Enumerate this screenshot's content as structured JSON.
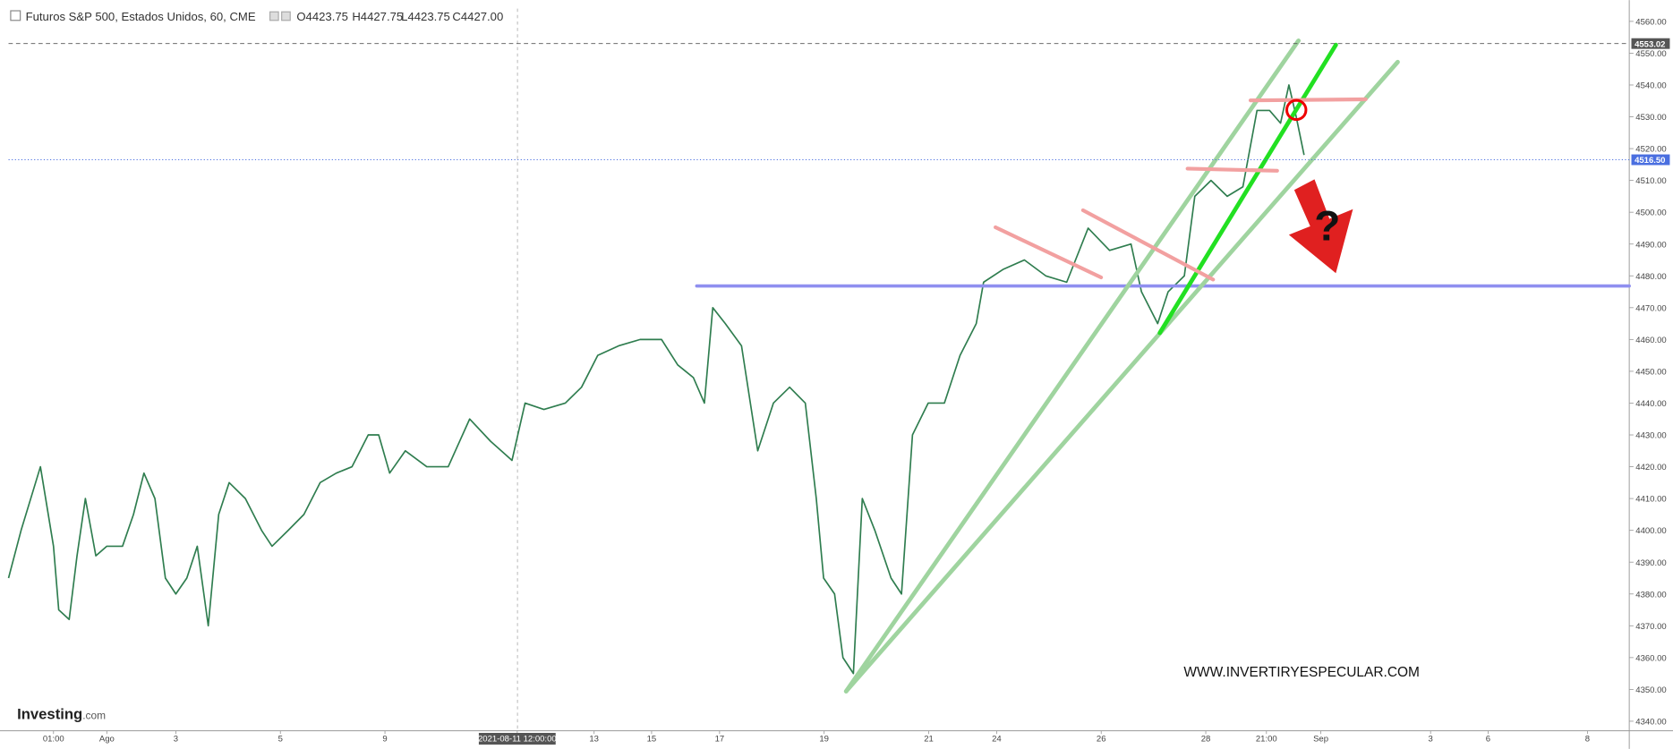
{
  "header": {
    "title": "Futuros S&P 500, Estados Unidos, 60, CME",
    "open": "O4423.75",
    "high": "H4427.75",
    "low": "L4423.75",
    "close": "C4427.00"
  },
  "chart_data": {
    "type": "line",
    "x": [
      0,
      0.24,
      0.61,
      0.86,
      0.96,
      1.16,
      1.31,
      1.47,
      1.67,
      1.88,
      2.18,
      2.39,
      2.59,
      2.8,
      3.0,
      3.2,
      3.41,
      3.61,
      3.82,
      4.02,
      4.22,
      4.53,
      4.84,
      5.04,
      5.35,
      5.65,
      5.96,
      6.27,
      6.57,
      6.88,
      7.08,
      7.29,
      7.59,
      8.0,
      8.41,
      8.82,
      9.22,
      9.63,
      9.88,
      10.24,
      10.65,
      10.96,
      11.27,
      11.67,
      12.08,
      12.49,
      12.8,
      13.1,
      13.31,
      13.47,
      13.71,
      14.02,
      14.33,
      14.63,
      14.94,
      15.24,
      15.45,
      15.59,
      15.8,
      15.96,
      16.16,
      16.33,
      16.57,
      16.88,
      17.08,
      17.29,
      17.59,
      17.9,
      18.2,
      18.51,
      18.65,
      19.02,
      19.43,
      19.84,
      20.24,
      20.65,
      21.06,
      21.47,
      21.67,
      21.98,
      22.18,
      22.49,
      22.69,
      23.0,
      23.31,
      23.61,
      23.88,
      24.12,
      24.33,
      24.49,
      24.63,
      24.78
    ],
    "series": [
      {
        "color": "#2f7d4f",
        "values": [
          4385,
          4400,
          4420,
          4395,
          4375,
          4372,
          4392,
          4410,
          4392,
          4395,
          4395,
          4405,
          4418,
          4410,
          4385,
          4380,
          4385,
          4395,
          4370,
          4405,
          4415,
          4410,
          4400,
          4395,
          4400,
          4405,
          4415,
          4418,
          4420,
          4430,
          4430,
          4418,
          4425,
          4420,
          4420,
          4435,
          4428,
          4422,
          4440,
          4438,
          4440,
          4445,
          4455,
          4458,
          4460,
          4460,
          4452,
          4448,
          4440,
          4470,
          4465,
          4458,
          4425,
          4440,
          4445,
          4440,
          4410,
          4385,
          4380,
          4360,
          4355,
          4410,
          4400,
          4385,
          4380,
          4430,
          4440,
          4440,
          4455,
          4465,
          4478,
          4482,
          4485,
          4480,
          4478,
          4495,
          4488,
          4490,
          4475,
          4465,
          4475,
          4480,
          4505,
          4510,
          4505,
          4508,
          4532,
          4532,
          4528,
          4540,
          4530,
          4518
        ]
      }
    ],
    "xlim": [
      0,
      31
    ],
    "xticks": [
      {
        "value": 0.86,
        "label": "01:00"
      },
      {
        "value": 1.88,
        "label": "Ago"
      },
      {
        "value": 3.2,
        "label": "3"
      },
      {
        "value": 5.2,
        "label": "5"
      },
      {
        "value": 7.2,
        "label": "9"
      },
      {
        "value": 9.73,
        "label": "2021-08-11 12:00:00"
      },
      {
        "value": 11.2,
        "label": "13"
      },
      {
        "value": 12.3,
        "label": "15"
      },
      {
        "value": 13.6,
        "label": "17"
      },
      {
        "value": 15.6,
        "label": "19"
      },
      {
        "value": 17.6,
        "label": "21"
      },
      {
        "value": 18.9,
        "label": "24"
      },
      {
        "value": 20.9,
        "label": "26"
      },
      {
        "value": 22.9,
        "label": "28"
      },
      {
        "value": 24.06,
        "label": "21:00"
      },
      {
        "value": 25.1,
        "label": "Sep"
      },
      {
        "value": 27.2,
        "label": "3"
      },
      {
        "value": 28.3,
        "label": "6"
      },
      {
        "value": 30.2,
        "label": "8"
      }
    ],
    "ylim": [
      4337,
      4564
    ],
    "yticks": [
      {
        "value": 4340,
        "label": "4340.00"
      },
      {
        "value": 4350,
        "label": "4350.00"
      },
      {
        "value": 4360,
        "label": "4360.00"
      },
      {
        "value": 4370,
        "label": "4370.00"
      },
      {
        "value": 4380,
        "label": "4380.00"
      },
      {
        "value": 4390,
        "label": "4390.00"
      },
      {
        "value": 4400,
        "label": "4400.00"
      },
      {
        "value": 4410,
        "label": "4410.00"
      },
      {
        "value": 4420,
        "label": "4420.00"
      },
      {
        "value": 4430,
        "label": "4430.00"
      },
      {
        "value": 4440,
        "label": "4440.00"
      },
      {
        "value": 4450,
        "label": "4450.00"
      },
      {
        "value": 4460,
        "label": "4460.00"
      },
      {
        "value": 4470,
        "label": "4470.00"
      },
      {
        "value": 4480,
        "label": "4480.00"
      },
      {
        "value": 4490,
        "label": "4490.00"
      },
      {
        "value": 4500,
        "label": "4500.00"
      },
      {
        "value": 4510,
        "label": "4510.00"
      },
      {
        "value": 4520,
        "label": "4520.00"
      },
      {
        "value": 4530,
        "label": "4530.00"
      },
      {
        "value": 4540,
        "label": "4540.00"
      },
      {
        "value": 4550,
        "label": "4550.00"
      },
      {
        "value": 4560,
        "label": "4560.00"
      }
    ],
    "price_lines": [
      {
        "value": 4553.02,
        "label": "4553.02",
        "color": "#555555"
      },
      {
        "value": 4516.5,
        "label": "4516.50",
        "color": "#4a6fe0"
      }
    ]
  },
  "annotations": {
    "question": "?",
    "website": "WWW.INVERTIRYESPECULAR.COM",
    "logo": "Investing",
    "logo_suffix": ".com"
  }
}
